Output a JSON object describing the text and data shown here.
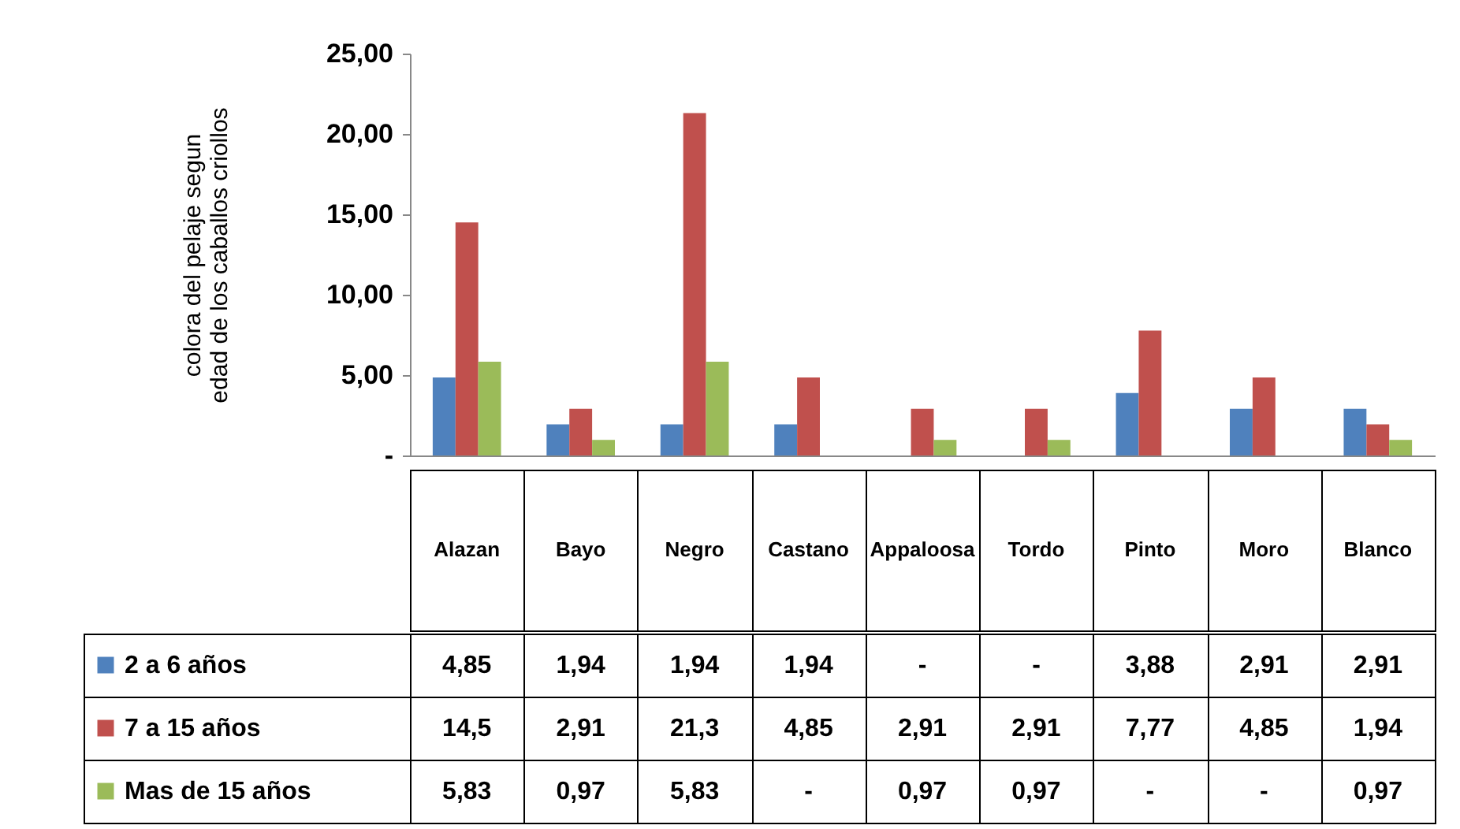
{
  "chart_data": {
    "type": "bar",
    "ylabel": "colora del pelaje segun edad de los caballos criollos",
    "categories": [
      "Alazan",
      "Bayo",
      "Negro",
      "Castano",
      "Appaloosa",
      "Tordo",
      "Pinto",
      "Moro",
      "Blanco"
    ],
    "series": [
      {
        "name": "2 a 6 años",
        "color": "#4f81bd",
        "values": [
          4.85,
          1.94,
          1.94,
          1.94,
          null,
          null,
          3.88,
          2.91,
          2.91
        ],
        "value_labels": [
          "4,85",
          "1,94",
          "1,94",
          "1,94",
          "-",
          "-",
          "3,88",
          "2,91",
          "2,91"
        ]
      },
      {
        "name": "7 a 15 años",
        "color": "#c0504d",
        "values": [
          14.5,
          2.91,
          21.3,
          4.85,
          2.91,
          2.91,
          7.77,
          4.85,
          1.94
        ],
        "value_labels": [
          "14,5",
          "2,91",
          "21,3",
          "4,85",
          "2,91",
          "2,91",
          "7,77",
          "4,85",
          "1,94"
        ]
      },
      {
        "name": "Mas de 15 años",
        "color": "#9bbb59",
        "values": [
          5.83,
          0.97,
          5.83,
          null,
          0.97,
          0.97,
          null,
          null,
          0.97
        ],
        "value_labels": [
          "5,83",
          "0,97",
          "5,83",
          "-",
          "0,97",
          "0,97",
          "-",
          "-",
          "0,97"
        ]
      }
    ],
    "ylim": [
      0,
      25
    ],
    "yticks": [
      {
        "value": 0,
        "label": "-"
      },
      {
        "value": 5,
        "label": "5,00"
      },
      {
        "value": 10,
        "label": "10,00"
      },
      {
        "value": 15,
        "label": "15,00"
      },
      {
        "value": 20,
        "label": "20,00"
      },
      {
        "value": 25,
        "label": "25,00"
      }
    ],
    "grid": false,
    "legend": "bottom"
  }
}
